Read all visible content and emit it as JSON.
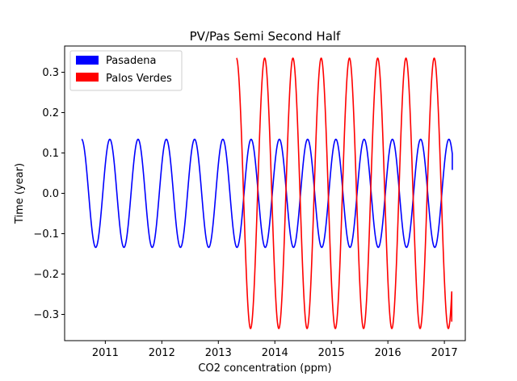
{
  "chart_data": {
    "type": "line",
    "title": "PV/Pas Semi Second Half",
    "xlabel": "CO2 concentration (ppm)",
    "ylabel": "Time (year)",
    "xlim": [
      2010.28,
      2017.37
    ],
    "ylim": [
      -0.365,
      0.365
    ],
    "x_ticks": [
      2011,
      2012,
      2013,
      2014,
      2015,
      2016,
      2017
    ],
    "x_tick_labels": [
      "2011",
      "2012",
      "2013",
      "2014",
      "2015",
      "2016",
      "2017"
    ],
    "y_ticks": [
      -0.3,
      -0.2,
      -0.1,
      0.0,
      0.1,
      0.2,
      0.3
    ],
    "y_tick_labels": [
      "−0.3",
      "−0.2",
      "−0.1",
      "0.0",
      "0.1",
      "0.2",
      "0.3"
    ],
    "legend_position": "top-left",
    "grid": false,
    "series": [
      {
        "name": "Pasadena",
        "color": "#0000ff",
        "amplitude": 0.134,
        "period": 0.5,
        "phase_peak_x": 2010.58,
        "x_range": [
          2010.58,
          2017.14
        ],
        "end_value": 0.058
      },
      {
        "name": "Palos Verdes",
        "color": "#ff0000",
        "amplitude": 0.335,
        "period": 0.5,
        "phase_peak_x": 2013.32,
        "x_range": [
          2013.32,
          2017.13
        ],
        "end_value": -0.318
      }
    ]
  }
}
